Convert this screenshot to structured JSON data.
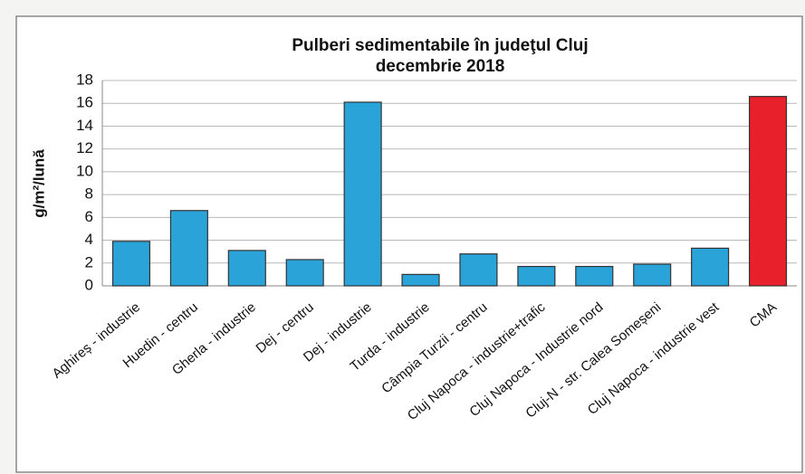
{
  "chart_data": {
    "type": "bar",
    "title": "Pulberi sedimentabile în judeţul Cluj",
    "subtitle": "decembrie 2018",
    "y_label": "g/m²/lună",
    "categories": [
      "Aghireș - industrie",
      "Huedin - centru",
      "Gherla - industrie",
      "Dej - centru",
      "Dej - industrie",
      "Turda - industrie",
      "Câmpia Turzii - centru",
      "Cluj Napoca - industrie+trafic",
      "Cluj Napoca - Industrie nord",
      "Cluj-N - str. Calea Someșeni",
      "Cluj Napoca - industrie vest",
      "CMA"
    ],
    "values": [
      3.9,
      6.6,
      3.1,
      2.3,
      16.1,
      1.0,
      2.8,
      1.7,
      1.7,
      1.9,
      3.3,
      16.6
    ],
    "colors": [
      "#2aa3d8",
      "#2aa3d8",
      "#2aa3d8",
      "#2aa3d8",
      "#2aa3d8",
      "#2aa3d8",
      "#2aa3d8",
      "#2aa3d8",
      "#2aa3d8",
      "#2aa3d8",
      "#2aa3d8",
      "#e8202c"
    ],
    "ylim": [
      0,
      18
    ],
    "yticks": [
      0,
      2,
      4,
      6,
      8,
      10,
      12,
      14,
      16,
      18
    ],
    "grid": true
  }
}
